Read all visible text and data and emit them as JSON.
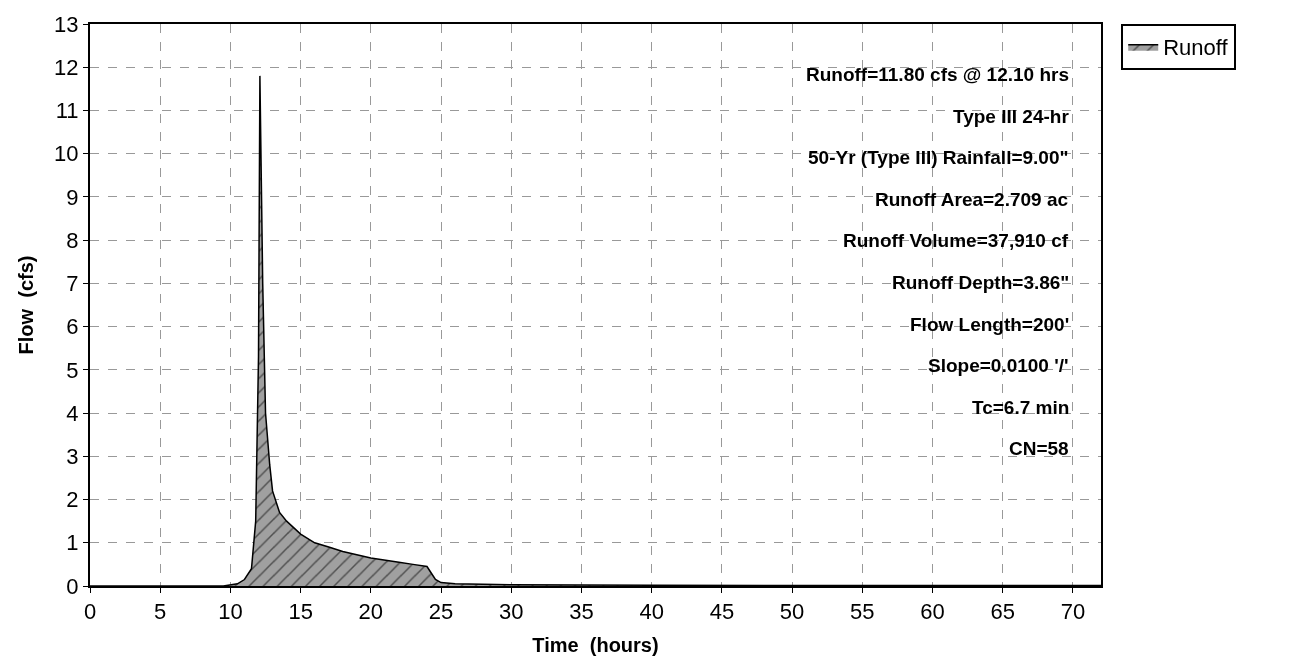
{
  "chart_data": {
    "type": "area",
    "xlabel": "Time  (hours)",
    "ylabel": "Flow  (cfs)",
    "series": [
      {
        "name": "Runoff",
        "color": "#a0a0a0",
        "x": [
          0,
          9.5,
          10.5,
          11,
          11.5,
          11.8,
          12.0,
          12.1,
          12.3,
          12.5,
          12.8,
          13.0,
          13.5,
          14,
          15,
          16,
          17,
          18,
          20,
          22,
          23,
          24,
          24.3,
          24.6,
          25,
          26,
          30,
          40,
          50,
          60,
          70,
          72
        ],
        "values": [
          0,
          0,
          0.05,
          0.15,
          0.4,
          1.5,
          5.3,
          11.8,
          7.0,
          4.0,
          2.8,
          2.2,
          1.7,
          1.5,
          1.2,
          1.0,
          0.9,
          0.8,
          0.65,
          0.55,
          0.5,
          0.45,
          0.3,
          0.15,
          0.08,
          0.05,
          0.03,
          0.02,
          0.01,
          0.01,
          0.01,
          0.01
        ]
      }
    ],
    "xlim": [
      0,
      72
    ],
    "xticks": [
      0,
      5,
      10,
      15,
      20,
      25,
      30,
      35,
      40,
      45,
      50,
      55,
      60,
      65,
      70
    ],
    "ylim": [
      0,
      13
    ],
    "yticks": [
      0,
      1,
      2,
      3,
      4,
      5,
      6,
      7,
      8,
      9,
      10,
      11,
      12,
      13
    ],
    "grid": true,
    "legend": "top right",
    "annotations": [
      "Runoff=11.80 cfs @ 12.10 hrs",
      "Type III 24-hr",
      "50-Yr (Type III) Rainfall=9.00\"",
      "Runoff Area=2.709 ac",
      "Runoff Volume=37,910 cf",
      "Runoff Depth=3.86\"",
      "Flow Length=200'",
      "Slope=0.0100 '/'",
      "Tc=6.7 min",
      "CN=58"
    ]
  }
}
